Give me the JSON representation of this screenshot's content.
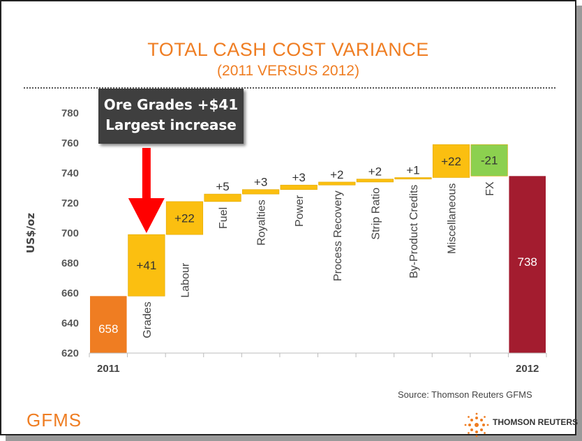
{
  "header": {
    "title": "TOTAL CASH COST VARIANCE",
    "subtitle": "(2011 VERSUS 2012)"
  },
  "callout": {
    "line1": "Ore Grades +$41",
    "line2": "Largest increase"
  },
  "footer": {
    "source": "Source: Thomson Reuters GFMS",
    "left_logo": "GFMS",
    "right_logo": "THOMSON REUTERS"
  },
  "colors": {
    "title": "#ef7d22",
    "start_bar": "#ef7d22",
    "increase": "#fbbf10",
    "decrease": "#8cd04f",
    "end_bar": "#a31c2f",
    "arrow": "#ff0000"
  },
  "chart_data": {
    "type": "waterfall",
    "ylabel": "US$/oz",
    "ylim": [
      620,
      780
    ],
    "yticks": [
      620,
      640,
      660,
      680,
      700,
      720,
      740,
      760,
      780
    ],
    "grid": false,
    "steps": [
      {
        "label": "2011",
        "kind": "total",
        "value": 658,
        "display": "658",
        "axis_label": true
      },
      {
        "label": "Grades",
        "kind": "delta",
        "value": 41,
        "display": "+41"
      },
      {
        "label": "Labour",
        "kind": "delta",
        "value": 22,
        "display": "+22"
      },
      {
        "label": "Fuel",
        "kind": "delta",
        "value": 5,
        "display": "+5"
      },
      {
        "label": "Royalties",
        "kind": "delta",
        "value": 3,
        "display": "+3"
      },
      {
        "label": "Power",
        "kind": "delta",
        "value": 3,
        "display": "+3"
      },
      {
        "label": "Process Recovery",
        "kind": "delta",
        "value": 2,
        "display": "+2"
      },
      {
        "label": "Strip Ratio",
        "kind": "delta",
        "value": 2,
        "display": "+2"
      },
      {
        "label": "By-Product Credits",
        "kind": "delta",
        "value": 1,
        "display": "+1"
      },
      {
        "label": "Miscellaneous",
        "kind": "delta",
        "value": 22,
        "display": "+22"
      },
      {
        "label": "FX",
        "kind": "delta",
        "value": -21,
        "display": "-21"
      },
      {
        "label": "2012",
        "kind": "total",
        "value": 738,
        "display": "738",
        "axis_label": true
      }
    ]
  }
}
